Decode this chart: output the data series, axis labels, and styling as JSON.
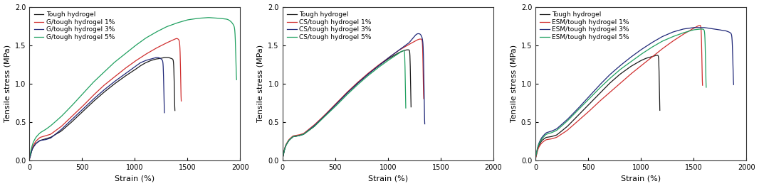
{
  "panels": [
    {
      "ylabel": "Tensile stress (MPa)",
      "xlabel": "Strain (%)",
      "xlim": [
        0,
        2000
      ],
      "ylim": [
        0,
        2.0
      ],
      "yticks": [
        0,
        0.5,
        1.0,
        1.5,
        2.0
      ],
      "xticks": [
        0,
        500,
        1000,
        1500,
        2000
      ],
      "legend": [
        "Tough hydrogel",
        "G/tough hydrogel 1%",
        "G/tough hydrogel 3%",
        "G/tough hydrogel 5%"
      ],
      "colors": [
        "#1a1a1a",
        "#d03030",
        "#202878",
        "#20a060"
      ],
      "curves": [
        {
          "strain": [
            0,
            5,
            15,
            30,
            60,
            100,
            150,
            200,
            300,
            400,
            500,
            600,
            700,
            800,
            900,
            1000,
            1050,
            1100,
            1150,
            1200,
            1250,
            1280,
            1300,
            1320,
            1340,
            1360,
            1370,
            1375,
            1380
          ],
          "stress": [
            0,
            0.04,
            0.1,
            0.16,
            0.22,
            0.26,
            0.28,
            0.3,
            0.38,
            0.5,
            0.63,
            0.76,
            0.88,
            0.99,
            1.09,
            1.18,
            1.23,
            1.27,
            1.3,
            1.32,
            1.33,
            1.34,
            1.34,
            1.34,
            1.33,
            1.32,
            1.3,
            1.2,
            0.0
          ]
        },
        {
          "strain": [
            0,
            5,
            15,
            30,
            60,
            100,
            150,
            200,
            300,
            400,
            500,
            600,
            700,
            800,
            900,
            1000,
            1100,
            1200,
            1300,
            1350,
            1380,
            1400,
            1420,
            1430,
            1435,
            1440
          ],
          "stress": [
            0,
            0.05,
            0.12,
            0.18,
            0.25,
            0.3,
            0.32,
            0.34,
            0.44,
            0.57,
            0.7,
            0.84,
            0.97,
            1.08,
            1.19,
            1.29,
            1.38,
            1.46,
            1.53,
            1.56,
            1.58,
            1.59,
            1.57,
            1.52,
            1.4,
            0.0
          ]
        },
        {
          "strain": [
            0,
            5,
            15,
            30,
            60,
            100,
            150,
            200,
            300,
            400,
            500,
            600,
            700,
            800,
            900,
            1000,
            1050,
            1100,
            1150,
            1180,
            1200,
            1220,
            1240,
            1260,
            1270,
            1275,
            1280
          ],
          "stress": [
            0,
            0.04,
            0.1,
            0.16,
            0.22,
            0.26,
            0.27,
            0.29,
            0.4,
            0.53,
            0.66,
            0.79,
            0.91,
            1.02,
            1.12,
            1.22,
            1.27,
            1.3,
            1.32,
            1.33,
            1.34,
            1.34,
            1.33,
            1.31,
            1.28,
            1.2,
            0.0
          ]
        },
        {
          "strain": [
            0,
            5,
            15,
            30,
            60,
            100,
            150,
            200,
            300,
            400,
            500,
            600,
            700,
            800,
            900,
            1000,
            1100,
            1200,
            1300,
            1400,
            1500,
            1600,
            1700,
            1800,
            1870,
            1890,
            1910,
            1930,
            1940,
            1950,
            1955,
            1960,
            1965
          ],
          "stress": [
            0,
            0.06,
            0.14,
            0.22,
            0.3,
            0.36,
            0.4,
            0.45,
            0.57,
            0.71,
            0.86,
            1.01,
            1.14,
            1.27,
            1.38,
            1.49,
            1.59,
            1.67,
            1.74,
            1.79,
            1.83,
            1.85,
            1.86,
            1.85,
            1.84,
            1.83,
            1.81,
            1.78,
            1.75,
            1.73,
            1.71,
            1.68,
            0.0
          ]
        }
      ]
    },
    {
      "ylabel": "Tensile stress (MPa)",
      "xlabel": "Strain (%)",
      "xlim": [
        0,
        2000
      ],
      "ylim": [
        0,
        2.0
      ],
      "yticks": [
        0,
        0.5,
        1.0,
        1.5,
        2.0
      ],
      "xticks": [
        0,
        500,
        1000,
        1500,
        2000
      ],
      "legend": [
        "Tough hydrogel",
        "CS/tough hydrogel 1%",
        "CS/tough hydrogel 3%",
        "CS/tough hydrogel 5%"
      ],
      "colors": [
        "#1a1a1a",
        "#d03030",
        "#202878",
        "#20a060"
      ],
      "curves": [
        {
          "strain": [
            0,
            5,
            15,
            30,
            60,
            100,
            150,
            200,
            300,
            400,
            500,
            600,
            700,
            800,
            900,
            1000,
            1100,
            1150,
            1180,
            1200,
            1210,
            1215,
            1220
          ],
          "stress": [
            0,
            0.05,
            0.12,
            0.19,
            0.26,
            0.31,
            0.32,
            0.34,
            0.44,
            0.58,
            0.72,
            0.86,
            0.99,
            1.11,
            1.22,
            1.32,
            1.4,
            1.43,
            1.44,
            1.44,
            1.43,
            1.4,
            0.0
          ]
        },
        {
          "strain": [
            0,
            5,
            15,
            30,
            60,
            100,
            150,
            200,
            300,
            400,
            500,
            600,
            700,
            800,
            900,
            1000,
            1100,
            1200,
            1280,
            1300,
            1320,
            1330,
            1335,
            1340
          ],
          "stress": [
            0,
            0.05,
            0.13,
            0.2,
            0.27,
            0.32,
            0.33,
            0.35,
            0.46,
            0.59,
            0.73,
            0.87,
            1.0,
            1.12,
            1.23,
            1.33,
            1.43,
            1.51,
            1.57,
            1.58,
            1.58,
            1.57,
            1.52,
            0.0
          ]
        },
        {
          "strain": [
            0,
            5,
            15,
            30,
            60,
            100,
            150,
            200,
            300,
            400,
            500,
            600,
            700,
            800,
            900,
            1000,
            1100,
            1200,
            1230,
            1260,
            1280,
            1300,
            1310,
            1315,
            1320,
            1325,
            1330,
            1335,
            1340,
            1350
          ],
          "stress": [
            0,
            0.05,
            0.12,
            0.19,
            0.26,
            0.31,
            0.32,
            0.34,
            0.45,
            0.58,
            0.72,
            0.86,
            0.99,
            1.11,
            1.22,
            1.33,
            1.43,
            1.53,
            1.58,
            1.63,
            1.65,
            1.65,
            1.64,
            1.63,
            1.62,
            1.6,
            1.57,
            1.53,
            1.48,
            0.0
          ]
        },
        {
          "strain": [
            0,
            5,
            15,
            30,
            60,
            100,
            150,
            200,
            300,
            400,
            500,
            600,
            700,
            800,
            900,
            1000,
            1100,
            1130,
            1150,
            1160,
            1165,
            1170
          ],
          "stress": [
            0,
            0.05,
            0.12,
            0.19,
            0.26,
            0.31,
            0.32,
            0.34,
            0.44,
            0.57,
            0.7,
            0.84,
            0.97,
            1.09,
            1.2,
            1.3,
            1.39,
            1.42,
            1.43,
            1.43,
            1.41,
            0.0
          ]
        }
      ]
    },
    {
      "ylabel": "Tensile stress (MPa)",
      "xlabel": "Strain (%)",
      "xlim": [
        0,
        2000
      ],
      "ylim": [
        0,
        2.0
      ],
      "yticks": [
        0,
        0.5,
        1.0,
        1.5,
        2.0
      ],
      "xticks": [
        0,
        500,
        1000,
        1500,
        2000
      ],
      "legend": [
        "Tough hydrogel",
        "ESM/tough hydrogel 1%",
        "ESM/tough hydrogel 3%",
        "ESM/tough hydrogel 5%"
      ],
      "colors": [
        "#1a1a1a",
        "#d03030",
        "#202878",
        "#20a060"
      ],
      "curves": [
        {
          "strain": [
            0,
            5,
            15,
            30,
            60,
            100,
            150,
            200,
            300,
            400,
            500,
            600,
            700,
            800,
            900,
            1000,
            1050,
            1100,
            1130,
            1150,
            1160,
            1170,
            1175,
            1180
          ],
          "stress": [
            0,
            0.05,
            0.12,
            0.19,
            0.26,
            0.3,
            0.31,
            0.33,
            0.44,
            0.58,
            0.72,
            0.86,
            1.0,
            1.12,
            1.22,
            1.3,
            1.33,
            1.35,
            1.36,
            1.37,
            1.37,
            1.36,
            1.34,
            0.0
          ]
        },
        {
          "strain": [
            0,
            5,
            15,
            30,
            60,
            100,
            150,
            200,
            300,
            400,
            500,
            600,
            700,
            800,
            900,
            1000,
            1100,
            1200,
            1300,
            1400,
            1500,
            1540,
            1560,
            1575,
            1580,
            1585
          ],
          "stress": [
            0,
            0.04,
            0.11,
            0.17,
            0.23,
            0.27,
            0.28,
            0.3,
            0.39,
            0.51,
            0.63,
            0.76,
            0.88,
            1.0,
            1.12,
            1.23,
            1.34,
            1.45,
            1.55,
            1.64,
            1.72,
            1.75,
            1.76,
            1.76,
            1.73,
            0.0
          ]
        },
        {
          "strain": [
            0,
            5,
            15,
            30,
            60,
            100,
            150,
            200,
            300,
            400,
            500,
            600,
            700,
            800,
            900,
            1000,
            1100,
            1200,
            1300,
            1400,
            1500,
            1600,
            1700,
            1750,
            1780,
            1800,
            1820,
            1840,
            1860,
            1875,
            1880
          ],
          "stress": [
            0,
            0.06,
            0.14,
            0.22,
            0.3,
            0.36,
            0.38,
            0.41,
            0.53,
            0.67,
            0.82,
            0.97,
            1.11,
            1.23,
            1.34,
            1.44,
            1.53,
            1.61,
            1.67,
            1.71,
            1.73,
            1.73,
            1.71,
            1.7,
            1.69,
            1.69,
            1.68,
            1.67,
            1.65,
            1.62,
            0.0
          ]
        },
        {
          "strain": [
            0,
            5,
            15,
            30,
            60,
            100,
            150,
            200,
            300,
            400,
            500,
            600,
            700,
            800,
            900,
            1000,
            1100,
            1200,
            1300,
            1400,
            1500,
            1560,
            1590,
            1600,
            1610,
            1615,
            1620
          ],
          "stress": [
            0,
            0.06,
            0.14,
            0.21,
            0.28,
            0.34,
            0.36,
            0.39,
            0.51,
            0.65,
            0.79,
            0.93,
            1.06,
            1.18,
            1.28,
            1.38,
            1.47,
            1.55,
            1.61,
            1.66,
            1.7,
            1.71,
            1.71,
            1.7,
            1.69,
            1.67,
            0.0
          ]
        }
      ]
    }
  ]
}
